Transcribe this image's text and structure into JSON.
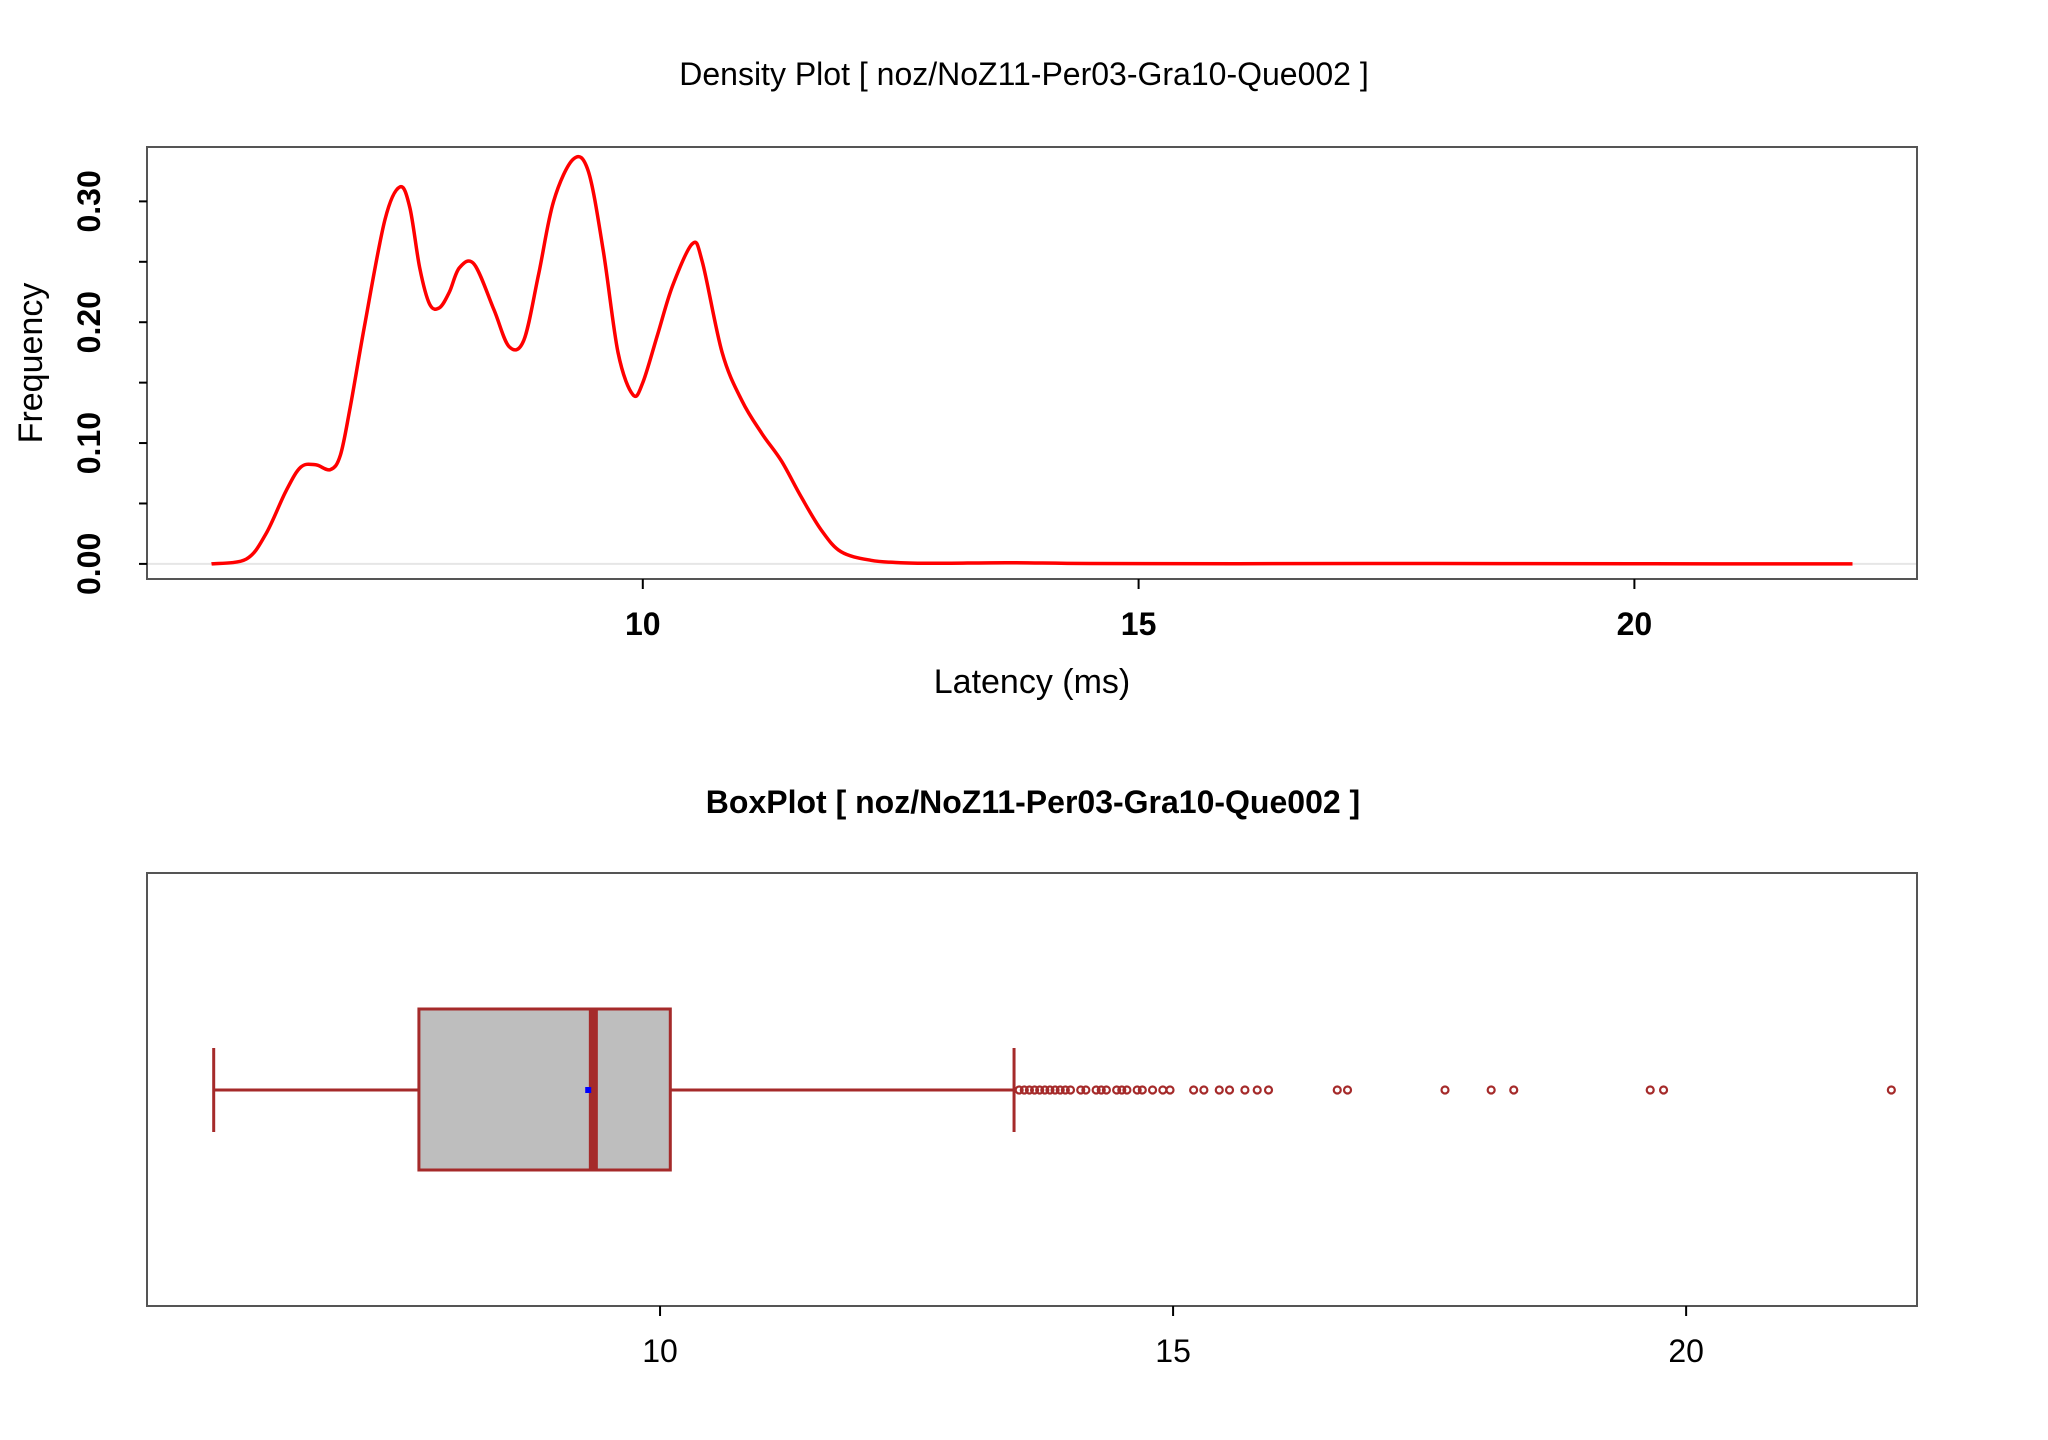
{
  "colors": {
    "density_line": "#ff0000",
    "box_stroke": "#a52a2a",
    "box_fill": "#bebebe",
    "mean_marker": "#0000ff",
    "frame": "#555555",
    "ref_line": "#e6e6e6"
  },
  "chart_data": [
    {
      "type": "line",
      "title": "Density Plot [ noz/NoZ11-Per03-Gra10-Que002 ]",
      "xlabel": "Latency (ms)",
      "ylabel": "Frequency",
      "xlim": [
        5.0,
        22.85
      ],
      "ylim": [
        -0.0125,
        0.345
      ],
      "x_ticks": [
        10,
        15,
        20
      ],
      "x_tick_labels": [
        "10",
        "15",
        "20"
      ],
      "y_ticks": [
        0.0,
        0.05,
        0.1,
        0.15,
        0.2,
        0.25,
        0.3
      ],
      "y_tick_labels": [
        "0.00",
        "",
        "0.10",
        "",
        "0.20",
        "",
        "0.30"
      ],
      "grid": false,
      "series": [
        {
          "x": [
            5.65,
            6.0,
            6.2,
            6.4,
            6.55,
            6.7,
            6.85,
            6.95,
            7.05,
            7.2,
            7.4,
            7.55,
            7.65,
            7.75,
            7.85,
            7.95,
            8.05,
            8.15,
            8.3,
            8.5,
            8.65,
            8.8,
            8.95,
            9.1,
            9.3,
            9.45,
            9.6,
            9.75,
            9.9,
            10.0,
            10.15,
            10.3,
            10.5,
            10.6,
            10.8,
            11.0,
            11.2,
            11.4,
            11.6,
            11.8,
            12.0,
            12.3,
            12.6,
            13.0,
            13.7,
            14.5,
            16.0,
            18.0,
            20.0,
            22.2
          ],
          "y": [
            0.0,
            0.004,
            0.025,
            0.06,
            0.08,
            0.082,
            0.078,
            0.09,
            0.13,
            0.2,
            0.285,
            0.312,
            0.295,
            0.245,
            0.215,
            0.212,
            0.225,
            0.245,
            0.248,
            0.21,
            0.18,
            0.185,
            0.24,
            0.3,
            0.335,
            0.325,
            0.26,
            0.175,
            0.14,
            0.15,
            0.19,
            0.23,
            0.265,
            0.25,
            0.175,
            0.135,
            0.108,
            0.085,
            0.055,
            0.028,
            0.01,
            0.003,
            0.001,
            0.0005,
            0.001,
            0.0003,
            0.0002,
            0.0003,
            0.0001,
            0.0
          ]
        }
      ]
    },
    {
      "type": "box",
      "title": "BoxPlot [ noz/NoZ11-Per03-Gra10-Que002 ]",
      "xlim": [
        5.0,
        22.25
      ],
      "x_ticks": [
        10,
        15,
        20
      ],
      "x_tick_labels": [
        "10",
        "15",
        "20"
      ],
      "whisker_low": 5.65,
      "q1": 7.65,
      "median": 9.35,
      "q3": 10.1,
      "whisker_high": 13.45,
      "mean": 9.3,
      "outliers": [
        13.5,
        13.55,
        13.6,
        13.65,
        13.7,
        13.75,
        13.8,
        13.85,
        13.9,
        13.95,
        14.0,
        14.1,
        14.15,
        14.25,
        14.3,
        14.35,
        14.45,
        14.5,
        14.55,
        14.65,
        14.7,
        14.8,
        14.9,
        14.97,
        15.2,
        15.3,
        15.45,
        15.55,
        15.7,
        15.82,
        15.93,
        16.6,
        16.7,
        17.65,
        18.1,
        18.32,
        19.65,
        19.78,
        22.0
      ]
    }
  ]
}
